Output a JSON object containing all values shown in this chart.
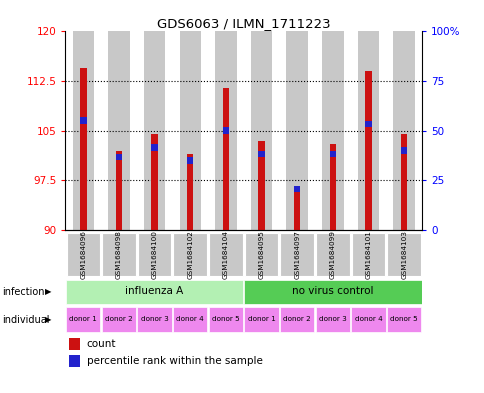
{
  "title": "GDS6063 / ILMN_1711223",
  "samples": [
    "GSM1684096",
    "GSM1684098",
    "GSM1684100",
    "GSM1684102",
    "GSM1684104",
    "GSM1684095",
    "GSM1684097",
    "GSM1684099",
    "GSM1684101",
    "GSM1684103"
  ],
  "red_values": [
    114.5,
    102.0,
    104.5,
    101.5,
    111.5,
    103.5,
    96.5,
    103.0,
    114.0,
    104.5
  ],
  "blue_values": [
    106.5,
    101.0,
    102.5,
    100.5,
    105.0,
    101.5,
    96.2,
    101.5,
    106.0,
    102.0
  ],
  "ymin": 90,
  "ymax": 120,
  "yticks": [
    90,
    97.5,
    105,
    112.5,
    120
  ],
  "ytick_labels": [
    "90",
    "97.5",
    "105",
    "112.5",
    "120"
  ],
  "y2ticks": [
    0,
    25,
    50,
    75,
    100
  ],
  "y2tick_labels": [
    "0",
    "25",
    "50",
    "75",
    "100%"
  ],
  "infection_groups": [
    {
      "label": "influenza A",
      "start": 0,
      "end": 5,
      "color": "#b3f0b3"
    },
    {
      "label": "no virus control",
      "start": 5,
      "end": 10,
      "color": "#55cc55"
    }
  ],
  "individual_labels": [
    "donor 1",
    "donor 2",
    "donor 3",
    "donor 4",
    "donor 5",
    "donor 1",
    "donor 2",
    "donor 3",
    "donor 4",
    "donor 5"
  ],
  "individual_color": "#ee88ee",
  "bar_bg_color": "#c8c8c8",
  "bar_red": "#cc1111",
  "bar_blue": "#2222cc",
  "legend_count": "count",
  "legend_pct": "percentile rank within the sample"
}
